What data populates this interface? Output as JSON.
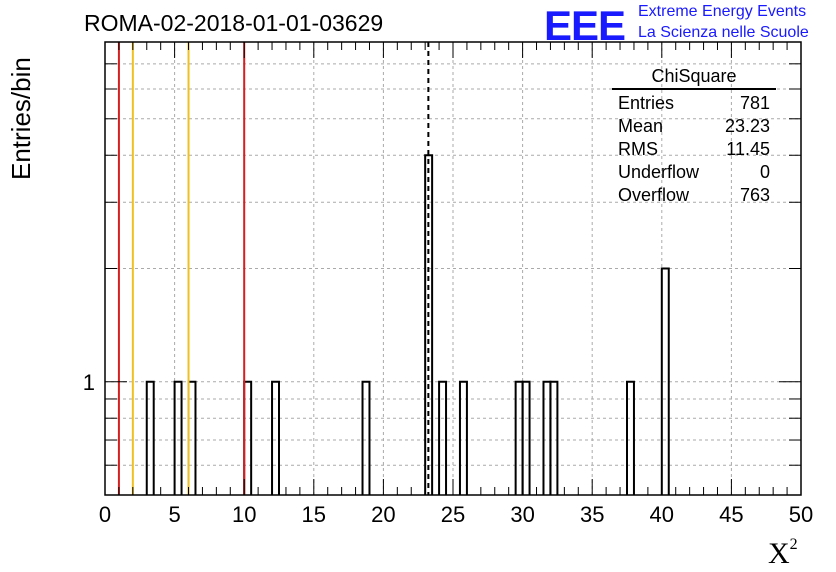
{
  "title": "ROMA-02-2018-01-01-03629",
  "logo": {
    "mark": "EEE",
    "line1": "Extreme Energy Events",
    "line2": "La Scienza nelle Scuole",
    "color": "#1a1aff"
  },
  "stats": {
    "title": "ChiSquare",
    "rows": [
      {
        "label": "Entries",
        "value": "781"
      },
      {
        "label": "Mean",
        "value": "23.23"
      },
      {
        "label": "RMS",
        "value": "11.45"
      },
      {
        "label": "Underflow",
        "value": "0"
      },
      {
        "label": "Overflow",
        "value": "763"
      }
    ]
  },
  "chart_data": {
    "type": "bar",
    "histogram": true,
    "xlabel": "X",
    "xlabel_sup": "2",
    "ylabel": "Entries/bin",
    "xlim": [
      0,
      50
    ],
    "ylim": [
      0.5,
      8
    ],
    "yscale": "log",
    "bin_width": 0.5,
    "x_ticks": [
      0,
      5,
      10,
      15,
      20,
      25,
      30,
      35,
      40,
      45,
      50
    ],
    "y_tick_label": {
      "value": 1,
      "text": "1"
    },
    "grid": true,
    "bins": [
      {
        "x": 3.0,
        "value": 1
      },
      {
        "x": 5.0,
        "value": 1
      },
      {
        "x": 6.0,
        "value": 1
      },
      {
        "x": 10.0,
        "value": 1
      },
      {
        "x": 12.0,
        "value": 1
      },
      {
        "x": 18.5,
        "value": 1
      },
      {
        "x": 23.0,
        "value": 4
      },
      {
        "x": 24.0,
        "value": 1
      },
      {
        "x": 25.5,
        "value": 1
      },
      {
        "x": 29.5,
        "value": 1
      },
      {
        "x": 30.0,
        "value": 1
      },
      {
        "x": 31.5,
        "value": 1
      },
      {
        "x": 32.0,
        "value": 1
      },
      {
        "x": 37.5,
        "value": 1
      },
      {
        "x": 40.0,
        "value": 2
      }
    ],
    "vertical_lines": [
      {
        "x": 1.0,
        "color": "#d42020",
        "style": "solid"
      },
      {
        "x": 2.0,
        "color": "#f0c020",
        "style": "solid"
      },
      {
        "x": 6.0,
        "color": "#f0c020",
        "style": "solid"
      },
      {
        "x": 10.0,
        "color": "#d42020",
        "style": "solid"
      },
      {
        "x": 23.23,
        "color": "#000000",
        "style": "dashed"
      }
    ]
  }
}
